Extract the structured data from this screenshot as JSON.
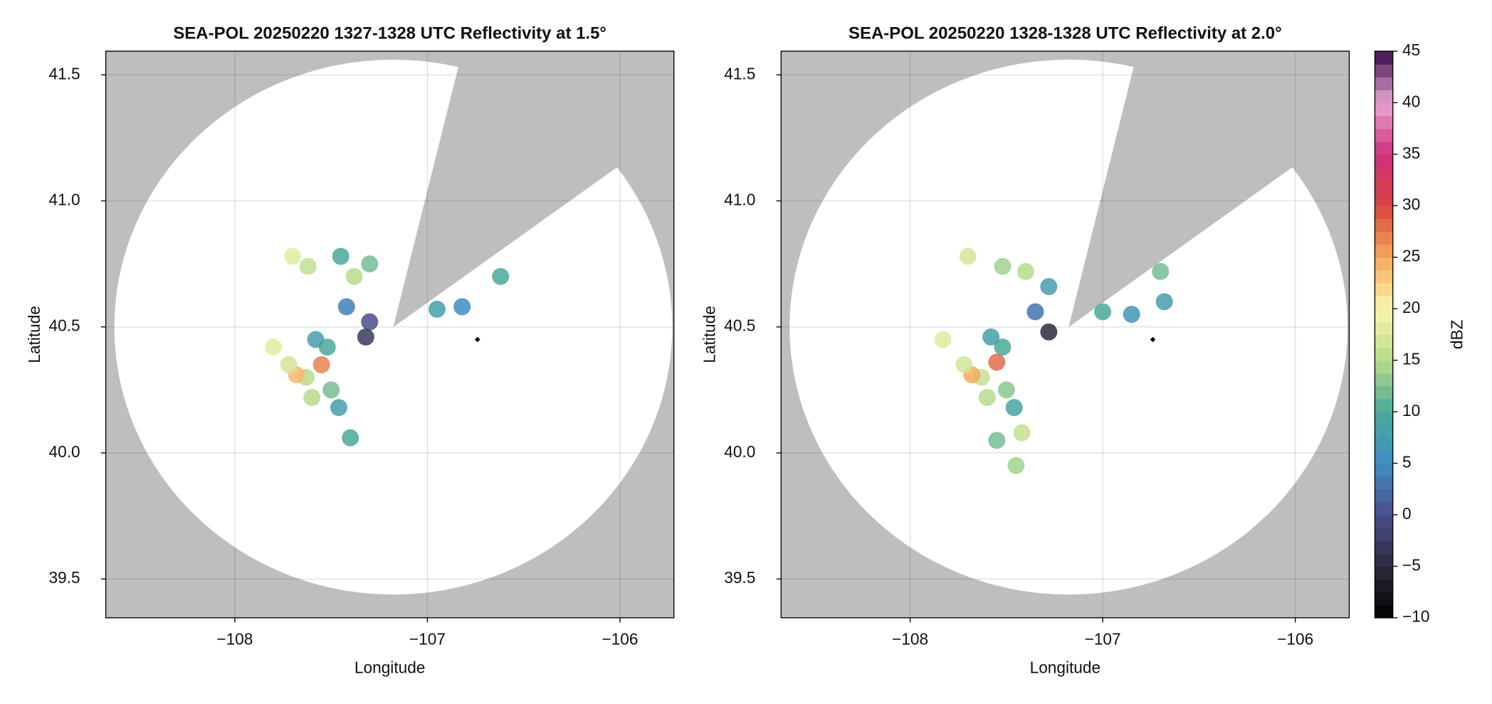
{
  "chart_data": [
    {
      "type": "scatter",
      "title": "SEA-POL 20250220 1327-1328 UTC Reflectivity at 1.5°",
      "xlabel": "Longitude",
      "ylabel": "Latitude",
      "xlim": [
        -108.67,
        -105.72
      ],
      "ylim": [
        39.346,
        41.594
      ],
      "xticks": [
        {
          "value": -108,
          "label": "−108"
        },
        {
          "value": -107,
          "label": "−107"
        },
        {
          "value": -106,
          "label": "−106"
        }
      ],
      "yticks": [
        39.5,
        {
          "value": 40,
          "label": "40.0"
        },
        40.5,
        {
          "value": 41,
          "label": "41.0"
        },
        41.5
      ],
      "grid": true,
      "x": [
        -107.63,
        -107.55,
        -107.68,
        -107.5,
        -107.6,
        -107.72,
        -107.52,
        -107.8,
        -107.46,
        -107.58,
        -107.7,
        -107.62,
        -107.45,
        -107.38,
        -107.3,
        -107.42,
        -107.3,
        -107.32,
        -106.95,
        -106.82,
        -106.62,
        -107.4
      ],
      "y": [
        40.3,
        40.35,
        40.31,
        40.25,
        40.22,
        40.35,
        40.42,
        40.42,
        40.18,
        40.45,
        40.78,
        40.74,
        40.78,
        40.7,
        40.75,
        40.58,
        40.52,
        40.46,
        40.57,
        40.58,
        40.7,
        40.06
      ],
      "values": [
        15,
        27,
        24,
        12,
        15,
        17,
        10,
        18,
        8,
        8,
        18,
        16,
        10,
        15,
        12,
        4,
        0,
        -3,
        8,
        5,
        10,
        10
      ],
      "marker": {
        "x": [
          -106.74
        ],
        "y": [
          40.45
        ]
      }
    },
    {
      "type": "scatter",
      "title": "SEA-POL 20250220 1328-1328 UTC Reflectivity at 2.0°",
      "xlabel": "Longitude",
      "ylabel": "Latitude",
      "xlim": [
        -108.67,
        -105.72
      ],
      "ylim": [
        39.346,
        41.594
      ],
      "xticks": [
        {
          "value": -108,
          "label": "−108"
        },
        {
          "value": -107,
          "label": "−107"
        },
        {
          "value": -106,
          "label": "−106"
        }
      ],
      "yticks": [
        39.5,
        {
          "value": 40,
          "label": "40.0"
        },
        40.5,
        {
          "value": 41,
          "label": "41.0"
        },
        41.5
      ],
      "grid": true,
      "x": [
        -107.63,
        -107.55,
        -107.68,
        -107.5,
        -107.6,
        -107.72,
        -107.52,
        -107.83,
        -107.46,
        -107.58,
        -107.7,
        -107.52,
        -107.4,
        -107.28,
        -107.35,
        -107.28,
        -107.55,
        -107.42,
        -107.45,
        -107.0,
        -106.85,
        -106.68,
        -106.7
      ],
      "y": [
        40.3,
        40.36,
        40.31,
        40.25,
        40.22,
        40.35,
        40.42,
        40.45,
        40.18,
        40.46,
        40.78,
        40.74,
        40.72,
        40.66,
        40.56,
        40.48,
        40.05,
        40.08,
        39.95,
        40.56,
        40.55,
        40.6,
        40.72
      ],
      "values": [
        16,
        28,
        25,
        13,
        15,
        17,
        10,
        18,
        9,
        8,
        17,
        14,
        15,
        8,
        3,
        -5,
        12,
        16,
        14,
        10,
        6,
        8,
        12
      ],
      "marker": {
        "x": [
          -106.74
        ],
        "y": [
          40.45
        ]
      }
    },
    {
      "type": "colorbar",
      "label": "dBZ",
      "lim": [
        -10,
        45
      ],
      "ticks": [
        {
          "value": -10,
          "label": "−10"
        },
        {
          "value": -5,
          "label": "−5"
        },
        0,
        5,
        10,
        15,
        20,
        25,
        30,
        35,
        40,
        45
      ],
      "colors": [
        "#000000",
        "#2c2a3e",
        "#4b4e8c",
        "#3e8dc2",
        "#4aa99a",
        "#b6dc8b",
        "#fbf6ad",
        "#f5a95c",
        "#d6443e",
        "#cf2f7c",
        "#e8a6d2",
        "#3a0b4b"
      ]
    }
  ]
}
